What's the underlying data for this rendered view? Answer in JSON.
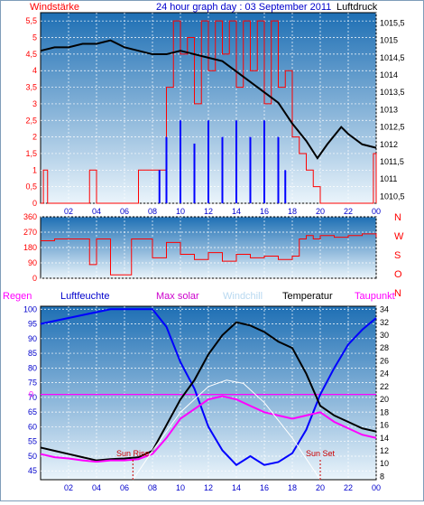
{
  "header": {
    "left_label": "Windstärke",
    "title": "24 hour graph day : 03 September 2011",
    "right_label": "Luftdruck"
  },
  "colors": {
    "wind_speed": "#ff0000",
    "wind_gust": "#0000ff",
    "pressure": "#000000",
    "wind_dir": "#ff0000",
    "rain": "#ff00ff",
    "humidity": "#0000ff",
    "max_solar": "#ffffff",
    "windchill": "#c8dcff",
    "temperature": "#000000",
    "dewpoint": "#ff00ff",
    "sky_top": "#1e6fb4",
    "sky_bottom": "#eaf4fb",
    "grid": "#ffffff",
    "ylabel_red": "#ff0000",
    "ylabel_blue": "#0000ff",
    "zero_line": "#ff00ff"
  },
  "chart_data": [
    {
      "type": "line",
      "title": "24 hour graph day : 03 September 2011",
      "x_ticks": [
        "02",
        "04",
        "06",
        "08",
        "10",
        "12",
        "14",
        "16",
        "18",
        "20",
        "22",
        "00"
      ],
      "left_axis": {
        "name": "Windstärke",
        "ticks": [
          "0",
          "0,5",
          "1",
          "1,5",
          "2",
          "2,5",
          "3",
          "3,5",
          "4",
          "4,5",
          "5",
          "5,5"
        ],
        "ylim": [
          0,
          5.75
        ]
      },
      "right_axis": {
        "name": "Luftdruck",
        "ticks": [
          "1010,5",
          "1011",
          "1011,5",
          "1012",
          "1012,5",
          "1013",
          "1013,5",
          "1014",
          "1014,5",
          "1015",
          "1015,5"
        ],
        "ylim": [
          1010.3,
          1015.8
        ]
      },
      "series": [
        {
          "name": "Luftdruck",
          "axis": "right",
          "x": [
            0.0,
            1.0,
            2.0,
            3.0,
            4.0,
            5.0,
            6.0,
            7.0,
            8.0,
            9.0,
            10.0,
            11.0,
            12.0,
            13.0,
            14.0,
            15.0,
            16.0,
            17.0,
            18.0,
            19.0,
            19.8,
            20.5,
            21.5,
            22.0,
            23.0,
            24.0
          ],
          "y": [
            1014.7,
            1014.8,
            1014.8,
            1014.9,
            1014.9,
            1015.0,
            1014.8,
            1014.7,
            1014.6,
            1014.6,
            1014.7,
            1014.6,
            1014.5,
            1014.4,
            1014.1,
            1013.8,
            1013.5,
            1013.2,
            1012.6,
            1012.1,
            1011.6,
            1012.0,
            1012.5,
            1012.3,
            1012.0,
            1011.9
          ]
        },
        {
          "name": "Windstärke",
          "axis": "left",
          "x": [
            0.0,
            0.2,
            0.5,
            3.0,
            3.5,
            4.0,
            6.5,
            7.0,
            8.5,
            9.0,
            9.5,
            10.0,
            10.5,
            11.0,
            11.5,
            12.0,
            12.5,
            13.0,
            13.5,
            14.0,
            14.5,
            15.0,
            15.5,
            16.0,
            16.5,
            17.0,
            17.5,
            18.0,
            18.5,
            19.0,
            19.5,
            20.0,
            21.0,
            22.0,
            23.0,
            23.8,
            24.0
          ],
          "y": [
            0.0,
            1.0,
            0.0,
            0.0,
            1.0,
            0.0,
            0.0,
            1.0,
            1.0,
            3.5,
            5.5,
            4.5,
            5.0,
            3.0,
            5.5,
            4.0,
            5.5,
            4.5,
            5.5,
            3.5,
            5.5,
            4.0,
            5.5,
            3.0,
            5.5,
            3.5,
            4.0,
            2.0,
            1.5,
            1.0,
            0.5,
            0.0,
            0.0,
            0.0,
            0.0,
            1.5,
            0.0
          ]
        },
        {
          "name": "Windböen",
          "axis": "left",
          "x": [
            8.5,
            9.0,
            10.0,
            11.0,
            12.0,
            13.0,
            14.0,
            15.0,
            16.0,
            17.0,
            17.5
          ],
          "y": [
            1.0,
            2.0,
            2.5,
            1.8,
            2.5,
            2.0,
            2.5,
            2.0,
            2.5,
            2.0,
            1.0
          ]
        }
      ]
    },
    {
      "type": "scatter",
      "x_ticks": [],
      "y_ticks": [
        "360",
        "270",
        "180",
        "90",
        "0"
      ],
      "dir_labels": [
        "N",
        "W",
        "S",
        "O",
        "N"
      ],
      "ylim": [
        0,
        360
      ],
      "series": [
        {
          "name": "Windrichtung",
          "x": [
            0.0,
            1.0,
            2.0,
            3.0,
            3.5,
            4.0,
            5.0,
            6.0,
            6.5,
            7.0,
            8.0,
            8.5,
            9.0,
            10.0,
            11.0,
            12.0,
            13.0,
            14.0,
            15.0,
            16.0,
            17.0,
            18.0,
            18.5,
            19.0,
            19.5,
            20.0,
            21.0,
            22.0,
            23.0,
            24.0
          ],
          "y": [
            220,
            230,
            230,
            230,
            80,
            230,
            20,
            20,
            230,
            230,
            120,
            120,
            210,
            140,
            110,
            150,
            100,
            140,
            120,
            130,
            110,
            130,
            230,
            250,
            230,
            250,
            240,
            250,
            260,
            240
          ]
        }
      ]
    },
    {
      "type": "line",
      "legend": [
        "Regen",
        "Luftfeuchte",
        "Max solar",
        "Windchill",
        "Temperatur",
        "Taupunkt"
      ],
      "x_ticks": [
        "02",
        "04",
        "06",
        "08",
        "10",
        "12",
        "14",
        "16",
        "18",
        "20",
        "22",
        "00"
      ],
      "left_axis": {
        "ticks": [
          "45",
          "50",
          "55",
          "60",
          "65",
          "70",
          "75",
          "80",
          "85",
          "90",
          "95",
          "100"
        ],
        "ylim": [
          42,
          101
        ]
      },
      "right_axis": {
        "ticks": [
          "8",
          "10",
          "12",
          "14",
          "16",
          "18",
          "20",
          "22",
          "24",
          "26",
          "28",
          "30",
          "32",
          "34"
        ],
        "ylim": [
          7.5,
          34.5
        ]
      },
      "rain_zero_label": "0",
      "sun_rise": {
        "label": "Sun Rise",
        "x": 6.6
      },
      "sun_set": {
        "label": "Sun Set",
        "x": 20.0
      },
      "series": [
        {
          "name": "Luftfeuchte",
          "axis": "left",
          "x": [
            0.0,
            1.0,
            2.0,
            3.0,
            4.0,
            5.0,
            6.0,
            7.0,
            8.0,
            9.0,
            10.0,
            11.0,
            12.0,
            13.0,
            14.0,
            15.0,
            16.0,
            17.0,
            18.0,
            19.0,
            20.0,
            21.0,
            22.0,
            23.0,
            24.0
          ],
          "y": [
            95,
            96,
            97,
            98,
            99,
            100,
            100,
            100,
            100,
            94,
            82,
            73,
            60,
            52,
            47,
            50,
            47,
            48,
            51,
            59,
            71,
            80,
            88,
            93,
            97
          ]
        },
        {
          "name": "Temperatur",
          "axis": "right",
          "x": [
            0.0,
            1.0,
            2.0,
            3.0,
            4.0,
            5.0,
            6.0,
            7.0,
            8.0,
            9.0,
            10.0,
            11.0,
            12.0,
            13.0,
            14.0,
            15.0,
            16.0,
            17.0,
            18.0,
            19.0,
            20.0,
            21.0,
            22.0,
            23.0,
            24.0
          ],
          "y": [
            12.5,
            12.0,
            11.5,
            11.0,
            10.5,
            10.7,
            10.8,
            11.0,
            12.0,
            16.0,
            20.0,
            23.0,
            27.0,
            30.0,
            32.0,
            31.5,
            30.5,
            29.0,
            28.0,
            24.0,
            19.0,
            17.5,
            16.5,
            15.5,
            15.0
          ]
        },
        {
          "name": "Taupunkt",
          "axis": "right",
          "x": [
            0.0,
            1.0,
            2.0,
            3.0,
            4.0,
            5.0,
            6.0,
            7.0,
            8.0,
            9.0,
            10.0,
            11.0,
            12.0,
            13.0,
            14.0,
            15.0,
            16.0,
            17.0,
            18.0,
            19.0,
            20.0,
            21.0,
            22.0,
            23.0,
            24.0
          ],
          "y": [
            11.5,
            11.0,
            10.8,
            10.5,
            10.3,
            10.5,
            10.5,
            10.7,
            11.5,
            14.0,
            17.0,
            18.5,
            20.0,
            20.5,
            20.0,
            19.0,
            18.0,
            17.5,
            17.0,
            17.5,
            18.0,
            16.5,
            15.5,
            14.5,
            14.0
          ]
        },
        {
          "name": "Max solar",
          "axis": "right",
          "x": [
            6.6,
            8.0,
            10.0,
            12.0,
            13.3,
            14.5,
            16.0,
            18.0,
            20.0
          ],
          "y": [
            7.5,
            12.0,
            18.0,
            22.0,
            23.0,
            22.5,
            19.5,
            14.0,
            7.5
          ]
        }
      ]
    }
  ]
}
